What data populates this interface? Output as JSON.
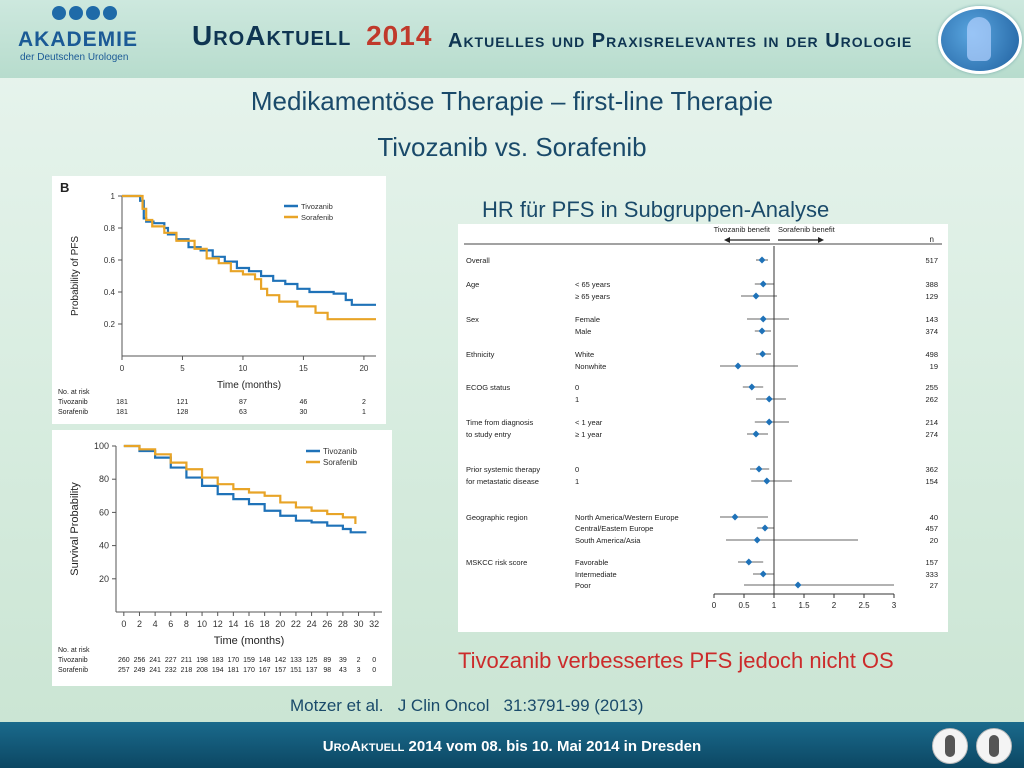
{
  "header": {
    "logo_main": "AKADEMIE",
    "logo_sub": "der Deutschen Urologen",
    "title": "UroAktuell",
    "year": "2014",
    "subtitle": "Aktuelles und Praxisrelevantes in der Urologie",
    "colors": {
      "blue": "#1b5a96",
      "navy": "#0f3552",
      "red": "#c0392b"
    }
  },
  "slide": {
    "title_line1": "Medikamentöse Therapie – first-line Therapie",
    "title_line2": "Tivozanib vs. Sorafenib",
    "hr_title": "HR für PFS in Subgruppen-Analyse",
    "caption": "Tivozanib verbessertes PFS jedoch nicht OS",
    "citation": "Motzer et al.   J Clin Oncol   31:3791-99 (2013)"
  },
  "footer": {
    "brand": "UroAktuell",
    "text": "2014  vom 08. bis 10. Mai 2014  in Dresden"
  },
  "chart_data": [
    {
      "type": "line",
      "panel_label": "B",
      "ylabel": "Probability of PFS",
      "xlabel": "Time (months)",
      "xlim": [
        0,
        21
      ],
      "ylim": [
        0,
        1.0
      ],
      "xticks": [
        0,
        5,
        10,
        15,
        20
      ],
      "yticks": [
        0.2,
        0.4,
        0.6,
        0.8,
        1.0
      ],
      "legend": "top-right",
      "series": [
        {
          "name": "Tivozanib",
          "color": "#1f72b8",
          "x": [
            0,
            1.5,
            1.8,
            2.0,
            2.6,
            3.5,
            3.8,
            4.5,
            5.5,
            6.5,
            7.5,
            8.5,
            9.5,
            10.5,
            11.5,
            12.5,
            13.5,
            14.5,
            15.5,
            17.5,
            18.5,
            19.0,
            21.0
          ],
          "y": [
            1.0,
            0.97,
            0.86,
            0.84,
            0.83,
            0.8,
            0.76,
            0.73,
            0.68,
            0.66,
            0.62,
            0.59,
            0.55,
            0.53,
            0.5,
            0.47,
            0.45,
            0.42,
            0.4,
            0.39,
            0.35,
            0.32,
            0.32
          ]
        },
        {
          "name": "Sorafenib",
          "color": "#e8a427",
          "x": [
            0,
            1.7,
            2.0,
            2.5,
            3.5,
            4.5,
            6.0,
            7.0,
            8.0,
            9.0,
            10.0,
            11.0,
            11.5,
            12.0,
            13.0,
            14.5,
            16.0,
            17.0,
            21.0
          ],
          "y": [
            1.0,
            0.92,
            0.85,
            0.81,
            0.77,
            0.72,
            0.67,
            0.61,
            0.58,
            0.53,
            0.51,
            0.48,
            0.42,
            0.38,
            0.34,
            0.31,
            0.27,
            0.23,
            0.23
          ]
        }
      ],
      "risk_table": {
        "title": "No. at risk",
        "rows": [
          {
            "label": "Tivozanib",
            "values": [
              "181",
              "121",
              "87",
              "46",
              "2"
            ]
          },
          {
            "label": "Sorafenib",
            "values": [
              "181",
              "128",
              "63",
              "30",
              "1"
            ]
          }
        ]
      }
    },
    {
      "type": "line",
      "ylabel": "Survival Probability",
      "xlabel": "Time (months)",
      "xlim": [
        -1,
        33
      ],
      "ylim": [
        0,
        100
      ],
      "xticks": [
        0,
        2,
        4,
        6,
        8,
        10,
        12,
        14,
        16,
        18,
        20,
        22,
        24,
        26,
        28,
        30,
        32
      ],
      "yticks": [
        20,
        40,
        60,
        80,
        100
      ],
      "legend": "top-right",
      "series": [
        {
          "name": "Tivozanib",
          "color": "#1f72b8",
          "x": [
            0,
            2,
            4,
            6,
            8,
            10,
            12,
            14,
            16,
            18,
            20,
            22,
            24,
            26,
            28,
            29,
            30,
            31
          ],
          "y": [
            100,
            97,
            93,
            87,
            81,
            76,
            71,
            68,
            65,
            61,
            58,
            55,
            54,
            52,
            50,
            48,
            48,
            48
          ]
        },
        {
          "name": "Sorafenib",
          "color": "#e8a427",
          "x": [
            0,
            2,
            4,
            6,
            8,
            10,
            12,
            14,
            16,
            18,
            20,
            22,
            24,
            26,
            28,
            29,
            29.6
          ],
          "y": [
            100,
            98,
            95,
            90,
            86,
            81,
            77,
            74,
            72,
            70,
            66,
            63,
            61,
            59,
            57,
            57,
            53
          ]
        }
      ],
      "risk_table": {
        "title": "No. at risk",
        "rows": [
          {
            "label": "Tivozanib",
            "values": [
              "260",
              "256",
              "241",
              "227",
              "211",
              "198",
              "183",
              "170",
              "159",
              "148",
              "142",
              "133",
              "125",
              "89",
              "39",
              "2",
              "0"
            ]
          },
          {
            "label": "Sorafenib",
            "values": [
              "257",
              "249",
              "241",
              "232",
              "218",
              "208",
              "194",
              "181",
              "170",
              "167",
              "157",
              "151",
              "137",
              "98",
              "43",
              "3",
              "0"
            ]
          }
        ]
      }
    },
    {
      "type": "scatter",
      "subtype": "forest",
      "xlim": [
        0,
        3
      ],
      "xticks": [
        "0",
        "0.5",
        "1",
        "1.5",
        "2",
        "2.5",
        "3"
      ],
      "reference_line": 1,
      "header_left": "Tivozanib benefit",
      "header_right": "Sorafenib benefit",
      "n_header": "n",
      "color": "#1f72b8",
      "rows": [
        {
          "group": "Overall",
          "sub": "",
          "n": "517",
          "hr": 0.8,
          "lo": 0.7,
          "hi": 0.9
        },
        {
          "group": "Age",
          "sub": "< 65 years",
          "n": "388",
          "hr": 0.82,
          "lo": 0.68,
          "hi": 1.0
        },
        {
          "group": "",
          "sub": "≥ 65 years",
          "n": "129",
          "hr": 0.7,
          "lo": 0.45,
          "hi": 1.05
        },
        {
          "group": "Sex",
          "sub": "Female",
          "n": "143",
          "hr": 0.82,
          "lo": 0.55,
          "hi": 1.25
        },
        {
          "group": "",
          "sub": "Male",
          "n": "374",
          "hr": 0.8,
          "lo": 0.68,
          "hi": 0.95
        },
        {
          "group": "Ethnicity",
          "sub": "White",
          "n": "498",
          "hr": 0.81,
          "lo": 0.7,
          "hi": 0.95
        },
        {
          "group": "",
          "sub": "Nonwhite",
          "n": "19",
          "hr": 0.4,
          "lo": 0.1,
          "hi": 1.4
        },
        {
          "group": "ECOG status",
          "sub": "0",
          "n": "255",
          "hr": 0.63,
          "lo": 0.48,
          "hi": 0.82
        },
        {
          "group": "",
          "sub": "1",
          "n": "262",
          "hr": 0.92,
          "lo": 0.7,
          "hi": 1.2
        },
        {
          "group": "Time from diagnosis",
          "group2": "to study entry",
          "sub": "< 1 year",
          "n": "214",
          "hr": 0.92,
          "lo": 0.68,
          "hi": 1.25
        },
        {
          "group": "",
          "sub": "≥ 1 year",
          "n": "274",
          "hr": 0.7,
          "lo": 0.55,
          "hi": 0.9
        },
        {
          "group": "Prior systemic therapy",
          "group2": "for metastatic disease",
          "sub": "0",
          "n": "362",
          "hr": 0.75,
          "lo": 0.6,
          "hi": 0.92
        },
        {
          "group": "",
          "sub": "1",
          "n": "154",
          "hr": 0.88,
          "lo": 0.62,
          "hi": 1.3
        },
        {
          "group": "Geographic region",
          "sub": "North America/Western Europe",
          "n": "40",
          "hr": 0.35,
          "lo": 0.1,
          "hi": 0.9
        },
        {
          "group": "",
          "sub": "Central/Eastern Europe",
          "n": "457",
          "hr": 0.85,
          "lo": 0.72,
          "hi": 1.0
        },
        {
          "group": "",
          "sub": "South America/Asia",
          "n": "20",
          "hr": 0.72,
          "lo": 0.2,
          "hi": 2.4
        },
        {
          "group": "MSKCC risk score",
          "sub": "Favorable",
          "n": "157",
          "hr": 0.58,
          "lo": 0.4,
          "hi": 0.82
        },
        {
          "group": "",
          "sub": "Intermediate",
          "n": "333",
          "hr": 0.82,
          "lo": 0.65,
          "hi": 1.0
        },
        {
          "group": "",
          "sub": "Poor",
          "n": "27",
          "hr": 1.4,
          "lo": 0.5,
          "hi": 3.0
        }
      ]
    }
  ]
}
